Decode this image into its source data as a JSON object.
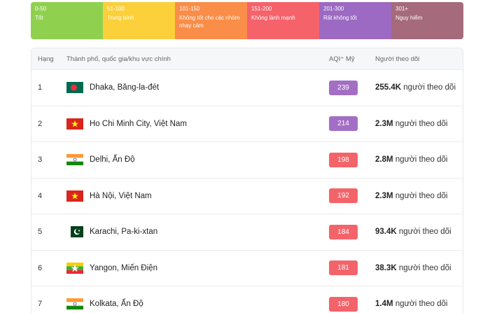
{
  "legend": [
    {
      "range": "0-50",
      "label": "Tốt",
      "color": "#8fd14f"
    },
    {
      "range": "51-100",
      "label": "Trung bình",
      "color": "#fbd03a"
    },
    {
      "range": "101-150",
      "label": "Không tốt cho các nhóm nhạy cảm",
      "color": "#fa8d48"
    },
    {
      "range": "151-200",
      "label": "Không lành mạnh",
      "color": "#f5626a"
    },
    {
      "range": "201-300",
      "label": "Rất không tốt",
      "color": "#9c6ac2"
    },
    {
      "range": "301+",
      "label": "Nguy hiểm",
      "color": "#a56a7b"
    }
  ],
  "table": {
    "headers": {
      "rank": "Hạng",
      "city": "Thành phố, quốc gia/khu vực chính",
      "aqi": "AQI⁺ Mỹ",
      "followers": "Người theo dõi"
    },
    "rows": [
      {
        "rank": "1",
        "flag": "bangladesh-flag-icon",
        "city": "Dhaka, Băng-la-đét",
        "aqi": "239",
        "aqi_color": "#a36fc4",
        "followers_num": "255.4K",
        "followers_text": " người theo dõi"
      },
      {
        "rank": "2",
        "flag": "vietnam-flag-icon",
        "city": "Ho Chi Minh City, Việt Nam",
        "aqi": "214",
        "aqi_color": "#a36fc4",
        "followers_num": "2.3M",
        "followers_text": " người theo dõi"
      },
      {
        "rank": "3",
        "flag": "india-flag-icon",
        "city": "Delhi, Ấn Độ",
        "aqi": "198",
        "aqi_color": "#f3646a",
        "followers_num": "2.8M",
        "followers_text": " người theo dõi"
      },
      {
        "rank": "4",
        "flag": "vietnam-flag-icon",
        "city": "Hà Nội, Việt Nam",
        "aqi": "192",
        "aqi_color": "#f3646a",
        "followers_num": "2.3M",
        "followers_text": " người theo dõi"
      },
      {
        "rank": "5",
        "flag": "pakistan-flag-icon",
        "city": "Karachi, Pa-ki-xtan",
        "aqi": "184",
        "aqi_color": "#f3646a",
        "followers_num": "93.4K",
        "followers_text": " người theo dõi"
      },
      {
        "rank": "6",
        "flag": "myanmar-flag-icon",
        "city": "Yangon, Miến Điện",
        "aqi": "181",
        "aqi_color": "#f3646a",
        "followers_num": "38.3K",
        "followers_text": " người theo dõi"
      },
      {
        "rank": "7",
        "flag": "india-flag-icon",
        "city": "Kolkata, Ấn Độ",
        "aqi": "180",
        "aqi_color": "#f3646a",
        "followers_num": "1.4M",
        "followers_text": " người theo dõi"
      }
    ]
  }
}
